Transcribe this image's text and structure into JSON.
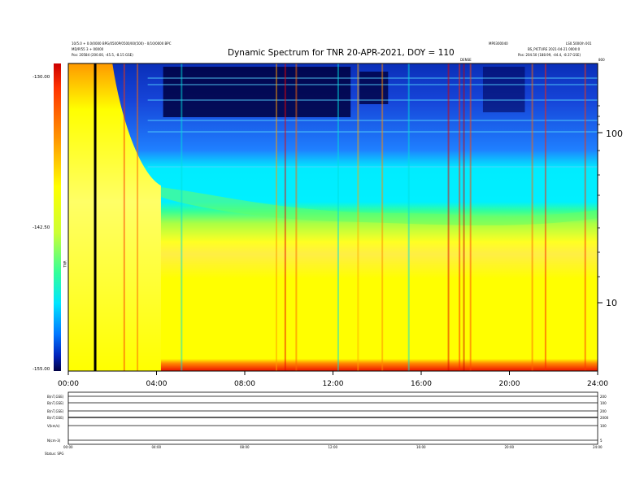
{
  "header": {
    "title": "Dynamic Spectrum for TNR 20-APR-2021, DOY = 110",
    "left_line1": "10/5.0 + 0.0/0000 BPG/0500P/0500/00(500) - 0/10/0000 BPC",
    "left_line2": "MD/P/55 3 + 00000",
    "left_line3": "Pos:   20584 (200.00, -45.5, -8.15 GSE)",
    "right_top_a": "MP0300040",
    "right_top_b": "LS0.5000/h 001",
    "right_line2": "BS_PICTURE 2021-04-21 0000:0",
    "right_line3": "Pos:   204.50 (188.99, -44.4, -8.37 GSE)",
    "marker_label": "DENSE",
    "marker_right": "800"
  },
  "colorbar": {
    "label": "TNR",
    "ticks": [
      "-130.00",
      "-142.50",
      "-155.00"
    ],
    "colors": [
      "#cc0000",
      "#ff2200",
      "#ff8800",
      "#ffee00",
      "#ffff00",
      "#00ff66",
      "#00e5ff",
      "#0088ff",
      "#0022cc",
      "#000060"
    ]
  },
  "bottom_panel": {
    "left_labels": [
      "B(nT,GSE)",
      "B(nT,GSE)",
      "B(nT,GSE)",
      "B(nT,GSE)",
      "V(km/s)",
      "N(cm-3)"
    ],
    "right_labels": [
      "200",
      "100",
      "200",
      "2000",
      "100",
      "5"
    ],
    "footer_label": "Status:   SPG",
    "hour_ticks": [
      "00:00",
      "04:00",
      "08:00",
      "12:00",
      "16:00",
      "20:00",
      "24:00"
    ]
  },
  "chart_data": {
    "type": "heatmap",
    "title": "Dynamic Spectrum for TNR 20-APR-2021, DOY = 110",
    "x_ticks": [
      "00:00",
      "04:00",
      "08:00",
      "12:00",
      "16:00",
      "20:00",
      "24:00"
    ],
    "x_range_hours": [
      0,
      24
    ],
    "y_ticks": [
      "100",
      "10"
    ],
    "y_scale": "log",
    "y_range": [
      4,
      450
    ],
    "z_ticks": [
      "-130.00",
      "-142.50",
      "-155.00"
    ],
    "z_range": [
      -155,
      -130
    ],
    "colormap": "jet",
    "data_gap_hours": [
      1.2
    ],
    "bursts_hours": [
      9.8,
      17.8,
      21.5
    ]
  }
}
